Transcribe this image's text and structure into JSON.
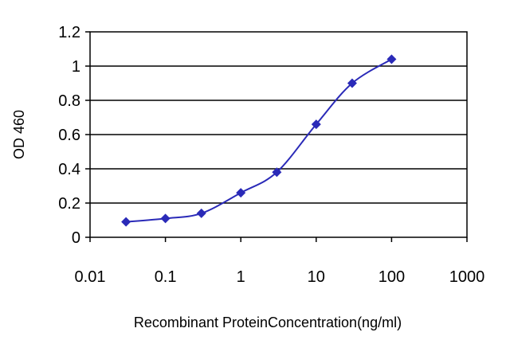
{
  "chart_data": {
    "type": "scatter",
    "title": "",
    "xlabel": "Recombinant ProteinConcentration(ng/ml)",
    "ylabel": "OD 460",
    "xscale": "log",
    "xlim": [
      0.01,
      1000
    ],
    "ylim": [
      0,
      1.2
    ],
    "x_ticks": [
      "0.01",
      "0.1",
      "1",
      "10",
      "100",
      "1000"
    ],
    "y_ticks": [
      "0",
      "0.2",
      "0.4",
      "0.6",
      "0.8",
      "1",
      "1.2"
    ],
    "grid": "horizontal",
    "legend": "none",
    "series": [
      {
        "color": "#2a2ab8",
        "marker": "diamond",
        "line": "smooth",
        "points": [
          {
            "x": 0.03,
            "y": 0.09
          },
          {
            "x": 0.1,
            "y": 0.11
          },
          {
            "x": 0.3,
            "y": 0.14
          },
          {
            "x": 1,
            "y": 0.26
          },
          {
            "x": 3,
            "y": 0.38
          },
          {
            "x": 10,
            "y": 0.66
          },
          {
            "x": 30,
            "y": 0.9
          },
          {
            "x": 100,
            "y": 1.04
          }
        ]
      }
    ]
  }
}
